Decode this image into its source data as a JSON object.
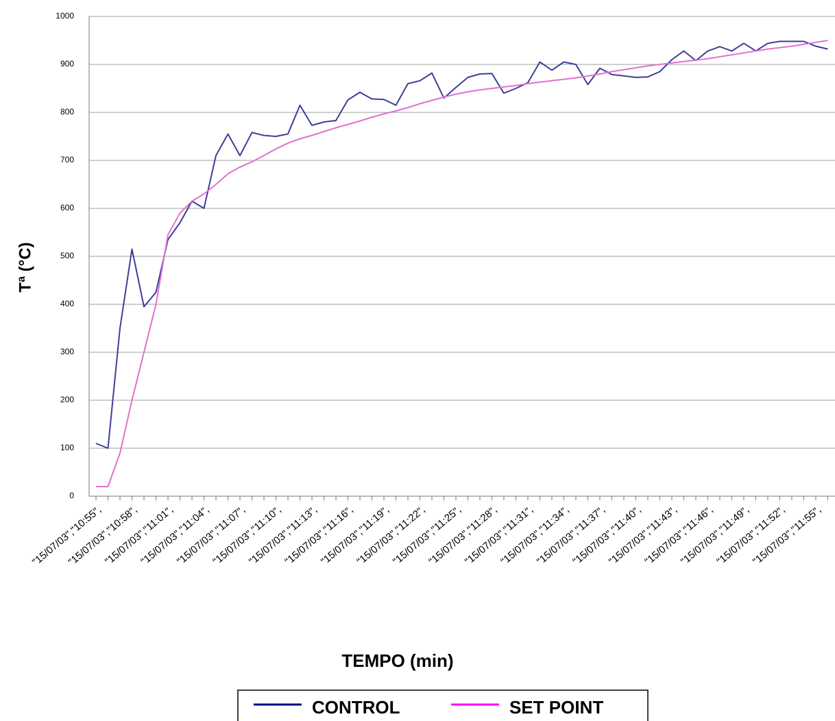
{
  "chart_data": {
    "type": "line",
    "y_label": "Tª (°C)",
    "x_label": "TEMPO (min)",
    "categories": [
      "\"15/07/03\",\"10:55\",",
      null,
      null,
      "\"15/07/03\",\"10:58\",",
      null,
      null,
      "\"15/07/03\",\"11:01\",",
      null,
      null,
      "\"15/07/03\",\"11:04\",",
      null,
      null,
      "\"15/07/03\",\"11:07\",",
      null,
      null,
      "\"15/07/03\",\"11:10\",",
      null,
      null,
      "\"15/07/03\",\"11:13\",",
      null,
      null,
      "\"15/07/03\",\"11:16\",",
      null,
      null,
      "\"15/07/03\",\"11:19\",",
      null,
      null,
      "\"15/07/03\",\"11:22\",",
      null,
      null,
      "\"15/07/03\",\"11:25\",",
      null,
      null,
      "\"15/07/03\",\"11:28\",",
      null,
      null,
      "\"15/07/03\",\"11:31\",",
      null,
      null,
      "\"15/07/03\",\"11:34\",",
      null,
      null,
      "\"15/07/03\",\"11:37\",",
      null,
      null,
      "\"15/07/03\",\"11:40\",",
      null,
      null,
      "\"15/07/03\",\"11:43\",",
      null,
      null,
      "\"15/07/03\",\"11:46\",",
      null,
      null,
      "\"15/07/03\",\"11:49\",",
      null,
      null,
      "\"15/07/03\",\"11:52\",",
      null,
      null,
      "\"15/07/03\",\"11:55\",",
      null
    ],
    "series": [
      {
        "name": "CONTROL",
        "color": "#3d3d99",
        "values": [
          110,
          100,
          350,
          515,
          395,
          425,
          535,
          570,
          615,
          600,
          710,
          755,
          710,
          758,
          752,
          750,
          755,
          815,
          773,
          780,
          783,
          826,
          842,
          828,
          827,
          815,
          860,
          866,
          882,
          830,
          852,
          873,
          880,
          881,
          840,
          850,
          862,
          905,
          888,
          905,
          900,
          858,
          892,
          879,
          876,
          873,
          874,
          885,
          910,
          928,
          908,
          928,
          937,
          928,
          944,
          928,
          944,
          948,
          948,
          948,
          938,
          932
        ]
      },
      {
        "name": "SET POINT",
        "color": "#e070d0",
        "values": [
          20,
          20,
          90,
          200,
          300,
          400,
          545,
          590,
          615,
          630,
          650,
          672,
          686,
          697,
          710,
          724,
          736,
          745,
          752,
          760,
          768,
          775,
          782,
          790,
          797,
          803,
          810,
          818,
          825,
          832,
          838,
          843,
          847,
          850,
          853,
          856,
          860,
          863,
          866,
          869,
          872,
          876,
          880,
          885,
          889,
          893,
          897,
          900,
          903,
          906,
          909,
          912,
          916,
          920,
          924,
          928,
          932,
          935,
          938,
          942,
          946,
          950
        ]
      }
    ],
    "ylim": [
      0,
      1000
    ],
    "yticks": [
      0,
      100,
      200,
      300,
      400,
      500,
      600,
      700,
      800,
      900,
      1000
    ],
    "grid": true,
    "legend": "bottom"
  }
}
